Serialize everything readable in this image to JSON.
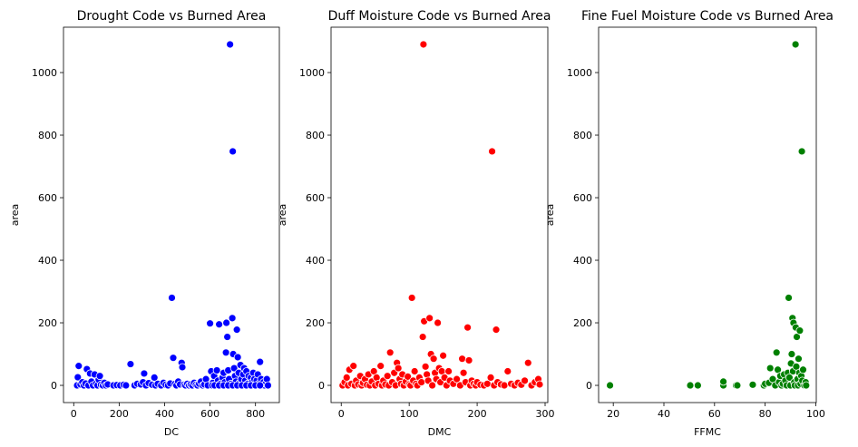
{
  "chart_data": [
    {
      "type": "scatter",
      "title": "Drought Code vs Burned Area",
      "xlabel": "DC",
      "ylabel": "area",
      "xlim": [
        -45,
        905
      ],
      "ylim": [
        -55,
        1145
      ],
      "xticks": [
        0,
        200,
        400,
        600,
        800
      ],
      "yticks": [
        0,
        200,
        400,
        600,
        800,
        1000
      ],
      "grid": false,
      "color": "#0000ff",
      "points": [
        [
          15,
          0
        ],
        [
          18,
          26
        ],
        [
          22,
          62
        ],
        [
          30,
          3
        ],
        [
          38,
          10
        ],
        [
          45,
          0
        ],
        [
          52,
          6
        ],
        [
          58,
          52
        ],
        [
          65,
          0
        ],
        [
          72,
          38
        ],
        [
          78,
          12
        ],
        [
          85,
          0
        ],
        [
          92,
          35
        ],
        [
          98,
          5
        ],
        [
          105,
          0
        ],
        [
          110,
          18
        ],
        [
          115,
          30
        ],
        [
          120,
          2
        ],
        [
          128,
          0
        ],
        [
          135,
          8
        ],
        [
          142,
          0
        ],
        [
          150,
          3
        ],
        [
          175,
          0
        ],
        [
          190,
          1
        ],
        [
          205,
          0
        ],
        [
          220,
          2
        ],
        [
          230,
          0
        ],
        [
          250,
          68
        ],
        [
          268,
          0
        ],
        [
          280,
          5
        ],
        [
          295,
          3
        ],
        [
          305,
          10
        ],
        [
          310,
          38
        ],
        [
          318,
          0
        ],
        [
          330,
          7
        ],
        [
          345,
          2
        ],
        [
          355,
          25
        ],
        [
          360,
          0
        ],
        [
          370,
          5
        ],
        [
          385,
          0
        ],
        [
          395,
          8
        ],
        [
          405,
          2
        ],
        [
          415,
          0
        ],
        [
          425,
          6
        ],
        [
          432,
          280
        ],
        [
          438,
          88
        ],
        [
          445,
          4
        ],
        [
          452,
          0
        ],
        [
          460,
          12
        ],
        [
          468,
          3
        ],
        [
          475,
          72
        ],
        [
          478,
          58
        ],
        [
          485,
          2
        ],
        [
          492,
          0
        ],
        [
          500,
          5
        ],
        [
          508,
          0
        ],
        [
          515,
          3
        ],
        [
          522,
          0
        ],
        [
          530,
          8
        ],
        [
          538,
          2
        ],
        [
          545,
          0
        ],
        [
          552,
          5
        ],
        [
          560,
          12
        ],
        [
          568,
          0
        ],
        [
          575,
          3
        ],
        [
          582,
          20
        ],
        [
          590,
          0
        ],
        [
          600,
          198
        ],
        [
          605,
          45
        ],
        [
          612,
          8
        ],
        [
          618,
          30
        ],
        [
          624,
          2
        ],
        [
          630,
          48
        ],
        [
          635,
          15
        ],
        [
          640,
          195
        ],
        [
          645,
          5
        ],
        [
          650,
          0
        ],
        [
          655,
          25
        ],
        [
          660,
          40
        ],
        [
          665,
          10
        ],
        [
          670,
          105
        ],
        [
          672,
          200
        ],
        [
          676,
          155
        ],
        [
          680,
          48
        ],
        [
          684,
          20
        ],
        [
          688,
          1090
        ],
        [
          692,
          5
        ],
        [
          695,
          0
        ],
        [
          698,
          215
        ],
        [
          700,
          748
        ],
        [
          702,
          100
        ],
        [
          706,
          55
        ],
        [
          710,
          30
        ],
        [
          714,
          12
        ],
        [
          718,
          178
        ],
        [
          722,
          90
        ],
        [
          726,
          40
        ],
        [
          730,
          8
        ],
        [
          734,
          65
        ],
        [
          738,
          20
        ],
        [
          742,
          0
        ],
        [
          746,
          35
        ],
        [
          750,
          55
        ],
        [
          755,
          15
        ],
        [
          760,
          45
        ],
        [
          765,
          5
        ],
        [
          770,
          30
        ],
        [
          775,
          0
        ],
        [
          780,
          25
        ],
        [
          785,
          10
        ],
        [
          790,
          40
        ],
        [
          795,
          20
        ],
        [
          800,
          0
        ],
        [
          805,
          15
        ],
        [
          810,
          35
        ],
        [
          815,
          5
        ],
        [
          820,
          75
        ],
        [
          825,
          20
        ],
        [
          830,
          0
        ],
        [
          835,
          10
        ],
        [
          840,
          0
        ],
        [
          845,
          5
        ],
        [
          850,
          20
        ],
        [
          855,
          0
        ],
        [
          610,
          0
        ],
        [
          620,
          0
        ],
        [
          640,
          0
        ],
        [
          660,
          0
        ],
        [
          680,
          0
        ],
        [
          700,
          0
        ],
        [
          720,
          0
        ],
        [
          740,
          0
        ],
        [
          760,
          0
        ],
        [
          780,
          0
        ],
        [
          800,
          0
        ],
        [
          820,
          0
        ]
      ]
    },
    {
      "type": "scatter",
      "title": "Duff Moisture Code vs Burned Area",
      "xlabel": "DMC",
      "ylabel": "area",
      "xlim": [
        -15,
        304
      ],
      "ylim": [
        -55,
        1145
      ],
      "xticks": [
        0,
        100,
        200,
        300
      ],
      "yticks": [
        0,
        200,
        400,
        600,
        800,
        1000
      ],
      "grid": false,
      "color": "#ff0000",
      "points": [
        [
          2,
          0
        ],
        [
          5,
          10
        ],
        [
          8,
          25
        ],
        [
          10,
          0
        ],
        [
          12,
          50
        ],
        [
          15,
          5
        ],
        [
          18,
          62
        ],
        [
          20,
          0
        ],
        [
          22,
          15
        ],
        [
          25,
          3
        ],
        [
          28,
          30
        ],
        [
          30,
          0
        ],
        [
          32,
          8
        ],
        [
          35,
          20
        ],
        [
          38,
          2
        ],
        [
          40,
          35
        ],
        [
          42,
          0
        ],
        [
          45,
          12
        ],
        [
          48,
          45
        ],
        [
          50,
          0
        ],
        [
          52,
          25
        ],
        [
          55,
          5
        ],
        [
          58,
          62
        ],
        [
          60,
          0
        ],
        [
          62,
          15
        ],
        [
          65,
          3
        ],
        [
          68,
          30
        ],
        [
          70,
          0
        ],
        [
          72,
          105
        ],
        [
          75,
          10
        ],
        [
          78,
          40
        ],
        [
          80,
          0
        ],
        [
          82,
          72
        ],
        [
          84,
          55
        ],
        [
          86,
          20
        ],
        [
          88,
          5
        ],
        [
          90,
          35
        ],
        [
          92,
          0
        ],
        [
          95,
          12
        ],
        [
          98,
          28
        ],
        [
          100,
          3
        ],
        [
          102,
          0
        ],
        [
          104,
          280
        ],
        [
          106,
          15
        ],
        [
          108,
          45
        ],
        [
          110,
          5
        ],
        [
          112,
          0
        ],
        [
          115,
          25
        ],
        [
          118,
          10
        ],
        [
          120,
          155
        ],
        [
          121,
          1090
        ],
        [
          122,
          205
        ],
        [
          124,
          60
        ],
        [
          126,
          35
        ],
        [
          128,
          15
        ],
        [
          130,
          215
        ],
        [
          132,
          100
        ],
        [
          134,
          0
        ],
        [
          136,
          85
        ],
        [
          138,
          40
        ],
        [
          140,
          20
        ],
        [
          142,
          200
        ],
        [
          144,
          55
        ],
        [
          146,
          10
        ],
        [
          148,
          45
        ],
        [
          150,
          95
        ],
        [
          152,
          25
        ],
        [
          155,
          0
        ],
        [
          158,
          45
        ],
        [
          160,
          15
        ],
        [
          165,
          5
        ],
        [
          170,
          20
        ],
        [
          175,
          0
        ],
        [
          178,
          85
        ],
        [
          180,
          40
        ],
        [
          183,
          10
        ],
        [
          186,
          185
        ],
        [
          188,
          80
        ],
        [
          190,
          0
        ],
        [
          192,
          15
        ],
        [
          195,
          5
        ],
        [
          198,
          0
        ],
        [
          200,
          10
        ],
        [
          205,
          2
        ],
        [
          210,
          0
        ],
        [
          215,
          5
        ],
        [
          220,
          25
        ],
        [
          222,
          748
        ],
        [
          225,
          0
        ],
        [
          228,
          178
        ],
        [
          230,
          10
        ],
        [
          235,
          3
        ],
        [
          240,
          0
        ],
        [
          245,
          45
        ],
        [
          250,
          5
        ],
        [
          255,
          0
        ],
        [
          260,
          8
        ],
        [
          265,
          2
        ],
        [
          270,
          15
        ],
        [
          275,
          72
        ],
        [
          280,
          0
        ],
        [
          285,
          10
        ],
        [
          290,
          20
        ],
        [
          292,
          3
        ]
      ]
    },
    {
      "type": "scatter",
      "title": "Fine Fuel Moisture Code vs Burned Area",
      "xlabel": "FFMC",
      "ylabel": "area",
      "xlim": [
        14.2,
        100.2
      ],
      "ylim": [
        -55,
        1145
      ],
      "xticks": [
        20,
        40,
        60,
        80,
        100
      ],
      "yticks": [
        0,
        200,
        400,
        600,
        800,
        1000
      ],
      "grid": false,
      "color": "#008000",
      "points": [
        [
          18.7,
          0
        ],
        [
          50.4,
          0
        ],
        [
          53.4,
          0
        ],
        [
          63.5,
          0
        ],
        [
          63.5,
          12
        ],
        [
          68.5,
          0
        ],
        [
          69,
          0
        ],
        [
          75.1,
          2
        ],
        [
          79.5,
          0
        ],
        [
          80,
          5
        ],
        [
          81.5,
          8
        ],
        [
          82,
          55
        ],
        [
          83,
          20
        ],
        [
          84,
          0
        ],
        [
          84.5,
          105
        ],
        [
          85,
          50
        ],
        [
          85.5,
          10
        ],
        [
          86,
          30
        ],
        [
          86.5,
          0
        ],
        [
          87,
          5
        ],
        [
          87.5,
          35
        ],
        [
          88,
          15
        ],
        [
          88.5,
          0
        ],
        [
          89,
          40
        ],
        [
          89.3,
          280
        ],
        [
          89.6,
          25
        ],
        [
          90,
          0
        ],
        [
          90.2,
          70
        ],
        [
          90.5,
          100
        ],
        [
          90.8,
          215
        ],
        [
          91,
          45
        ],
        [
          91.2,
          200
        ],
        [
          91.5,
          10
        ],
        [
          91.7,
          0
        ],
        [
          92,
          1090
        ],
        [
          92.1,
          185
        ],
        [
          92.3,
          60
        ],
        [
          92.5,
          155
        ],
        [
          92.8,
          20
        ],
        [
          93,
          0
        ],
        [
          93.2,
          85
        ],
        [
          93.5,
          40
        ],
        [
          93.7,
          175
        ],
        [
          94,
          5
        ],
        [
          94.3,
          30
        ],
        [
          94.5,
          748
        ],
        [
          94.7,
          15
        ],
        [
          95,
          50
        ],
        [
          95.5,
          0
        ],
        [
          96,
          10
        ],
        [
          96.2,
          0
        ]
      ]
    }
  ]
}
